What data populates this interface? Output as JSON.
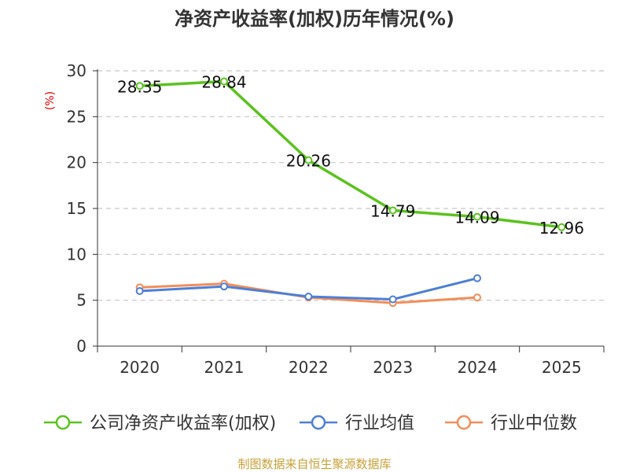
{
  "chart_data": {
    "type": "line",
    "title": "净资产收益率(加权)历年情况(%)",
    "ylabel": "(%)",
    "xlabel": "",
    "categories": [
      "2020",
      "2021",
      "2022",
      "2023",
      "2024",
      "2025"
    ],
    "ylim": [
      0,
      30
    ],
    "yticks": [
      0,
      5,
      10,
      15,
      20,
      25,
      30
    ],
    "grid": true,
    "legend_position": "bottom",
    "series": [
      {
        "name": "公司净资产收益率(加权)",
        "color": "#5cc21f",
        "values": [
          28.35,
          28.84,
          20.26,
          14.79,
          14.09,
          12.96
        ],
        "labels": [
          "28.35",
          "28.84",
          "20.26",
          "14.79",
          "14.09",
          "12.96"
        ],
        "show_labels": true
      },
      {
        "name": "行业均值",
        "color": "#4e7fd6",
        "values": [
          6.0,
          6.5,
          5.4,
          5.1,
          7.4,
          null
        ],
        "show_labels": false
      },
      {
        "name": "行业中位数",
        "color": "#f28e5a",
        "values": [
          6.4,
          6.8,
          5.3,
          4.7,
          5.3,
          null
        ],
        "show_labels": false
      }
    ],
    "source": "制图数据来自恒生聚源数据库"
  }
}
